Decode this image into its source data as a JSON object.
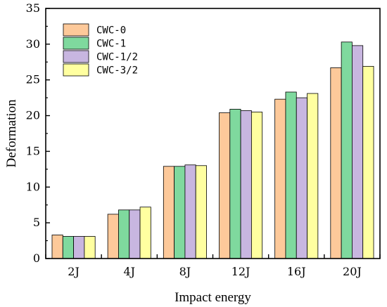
{
  "chart_data": {
    "type": "bar",
    "xlabel": "Impact energy",
    "ylabel": "Deformation",
    "categories": [
      "2J",
      "4J",
      "8J",
      "12J",
      "16J",
      "20J"
    ],
    "ylim": [
      0,
      35
    ],
    "yticks": [
      0,
      5,
      10,
      15,
      20,
      25,
      30,
      35
    ],
    "grid": false,
    "legend_position": "top-left",
    "series": [
      {
        "name": "CWC-0",
        "color": "#FDC99A",
        "values": [
          3.3,
          6.2,
          12.9,
          20.4,
          22.3,
          26.7
        ]
      },
      {
        "name": "CWC-1",
        "color": "#7FD99E",
        "values": [
          3.1,
          6.8,
          12.9,
          20.9,
          23.3,
          30.3
        ]
      },
      {
        "name": "CWC-1/2",
        "color": "#C8B6E0",
        "values": [
          3.1,
          6.8,
          13.1,
          20.7,
          22.5,
          29.8
        ]
      },
      {
        "name": "CWC-3/2",
        "color": "#FFFFA0",
        "values": [
          3.1,
          7.2,
          13.0,
          20.5,
          23.1,
          26.9
        ]
      }
    ]
  }
}
